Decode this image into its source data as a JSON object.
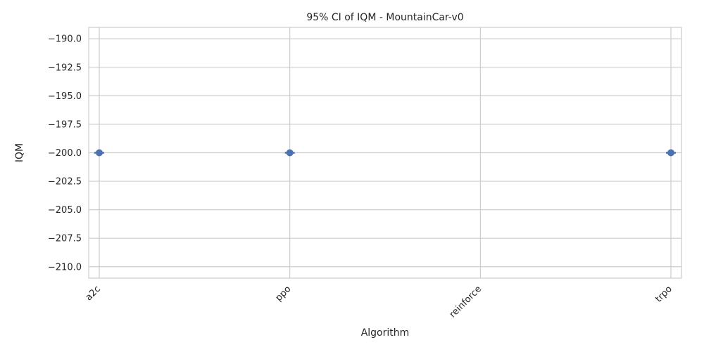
{
  "chart_data": {
    "type": "scatter",
    "title": "95% CI of IQM - MountainCar-v0",
    "xlabel": "Algorithm",
    "ylabel": "IQM",
    "categories": [
      "a2c",
      "ppo",
      "reinforce",
      "trpo"
    ],
    "ylim": [
      -211.0,
      -189.0
    ],
    "yticks": [
      -190.0,
      -192.5,
      -195.0,
      -197.5,
      -200.0,
      -202.5,
      -205.0,
      -207.5,
      -210.0
    ],
    "grid": true,
    "series": [
      {
        "values": [
          -200.0,
          -200.0,
          null,
          -200.0
        ],
        "ci_low": [
          -200.0,
          -200.0,
          null,
          -200.0
        ],
        "ci_high": [
          -200.0,
          -200.0,
          null,
          -200.0
        ]
      }
    ],
    "colors": {
      "marker": "#4c72b0",
      "grid": "#cccccc",
      "frame": "#cccccc",
      "text": "#262626"
    },
    "xtick_rotation": "45 degrees"
  }
}
